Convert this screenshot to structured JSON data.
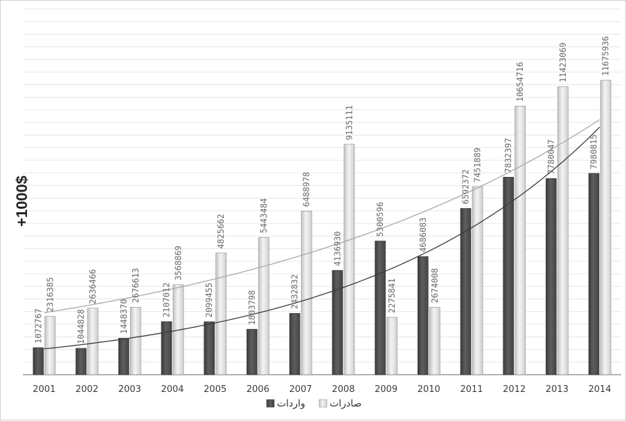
{
  "chart_data": {
    "type": "bar",
    "categories": [
      "2001",
      "2002",
      "2003",
      "2004",
      "2005",
      "2006",
      "2007",
      "2008",
      "2009",
      "2010",
      "2011",
      "2012",
      "2013",
      "2014"
    ],
    "series": [
      {
        "name": "واردات",
        "color": "#555555",
        "values": [
          1072767,
          1044828,
          1448370,
          2107012,
          2099455,
          1803798,
          2432832,
          4136930,
          5300596,
          4686083,
          6592372,
          7832397,
          7780047,
          7980815
        ],
        "labels": [
          "1072767",
          "1044828",
          "1448370",
          "2107012",
          "2099455",
          "1803798",
          "2432832",
          "4136930",
          "5300596",
          "4686083",
          "6592372",
          "7832397",
          "7780047",
          "7980815"
        ]
      },
      {
        "name": "صادرات",
        "color": "#e6e6e6",
        "values": [
          2316385,
          2636466,
          2676613,
          3568869,
          4825662,
          5443484,
          6488978,
          9135111,
          2275841,
          2674008,
          7451889,
          10654716,
          11423069,
          11675936
        ],
        "labels": [
          "2316385",
          "2636466",
          "2676613",
          "3568869",
          "4825662",
          "5443484",
          "6488978",
          "9135111",
          "2275841",
          "2674008",
          "7451889",
          "10654716",
          "11423069",
          "11675936"
        ]
      }
    ],
    "trendlines": true,
    "ylabel": "+1000$",
    "ylim": [
      0,
      14500000
    ],
    "grid": true,
    "legend_position": "bottom"
  }
}
